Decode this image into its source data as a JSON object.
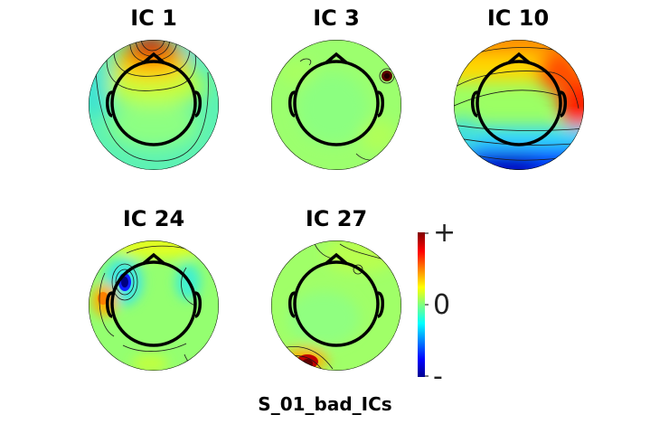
{
  "figure_title": "S_01_bad_ICs",
  "components": [
    {
      "id": "ic1",
      "title": "IC 1"
    },
    {
      "id": "ic3",
      "title": "IC 3"
    },
    {
      "id": "ic10",
      "title": "IC 10"
    },
    {
      "id": "ic24",
      "title": "IC 24"
    },
    {
      "id": "ic27",
      "title": "IC 27"
    }
  ],
  "colorbar": {
    "plus_label": "+",
    "zero_label": "0",
    "minus_label": "-",
    "colormap": "jet",
    "colors": [
      "#00008f",
      "#0000ff",
      "#00ffff",
      "#7fff7f",
      "#ffff00",
      "#ff7f00",
      "#ff0000",
      "#800000"
    ]
  },
  "colors": {
    "head_outline": "#000000",
    "contour": "#1a1a1a"
  }
}
